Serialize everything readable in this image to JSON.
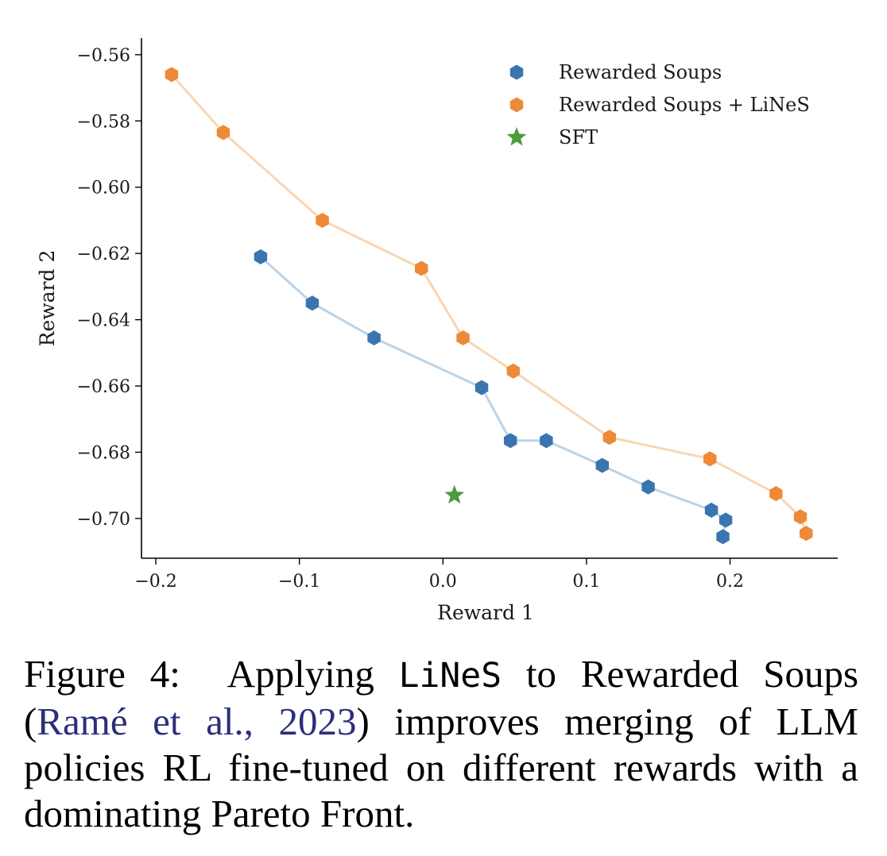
{
  "chart_data": {
    "type": "scatter",
    "xlabel": "Reward 1",
    "ylabel": "Reward 2",
    "xlim": [
      -0.21,
      0.275
    ],
    "ylim": [
      -0.712,
      -0.555
    ],
    "xticks": [
      -0.2,
      -0.1,
      0.0,
      0.1,
      0.2
    ],
    "xtick_labels": [
      "−0.2",
      "−0.1",
      "0.0",
      "0.1",
      "0.2"
    ],
    "yticks": [
      -0.56,
      -0.58,
      -0.6,
      -0.62,
      -0.64,
      -0.66,
      -0.68,
      -0.7
    ],
    "ytick_labels": [
      "−0.56",
      "−0.58",
      "−0.60",
      "−0.62",
      "−0.64",
      "−0.66",
      "−0.68",
      "−0.70"
    ],
    "legend_position": "top-right",
    "series": [
      {
        "name": "Rewarded Soups",
        "marker": "hexagon",
        "color": "#3a75b0",
        "line_color": "#bcd3e6",
        "x": [
          -0.127,
          -0.091,
          -0.048,
          0.027,
          0.047,
          0.072,
          0.111,
          0.143,
          0.187,
          0.197,
          0.195
        ],
        "y": [
          -0.621,
          -0.635,
          -0.6455,
          -0.6605,
          -0.6765,
          -0.6765,
          -0.684,
          -0.6905,
          -0.6975,
          -0.7005,
          -0.7055
        ]
      },
      {
        "name": "Rewarded Soups + LiNeS",
        "marker": "hexagon",
        "color": "#ee8a37",
        "line_color": "#f9d6b4",
        "x": [
          -0.189,
          -0.153,
          -0.084,
          -0.015,
          0.014,
          0.049,
          0.116,
          0.186,
          0.232,
          0.249,
          0.253
        ],
        "y": [
          -0.566,
          -0.5835,
          -0.61,
          -0.6245,
          -0.6455,
          -0.6555,
          -0.6755,
          -0.682,
          -0.6925,
          -0.6995,
          -0.7045
        ]
      },
      {
        "name": "SFT",
        "marker": "star",
        "color": "#4c9b3e",
        "x": [
          0.008
        ],
        "y": [
          -0.693
        ]
      }
    ]
  },
  "caption": {
    "label": "Figure 4:",
    "text_before_method": "Applying",
    "method": "LiNeS",
    "text_after_method": "to Rewarded Soups (",
    "citation": "Ramé et al., 2023",
    "text_after_citation": ") improves merging of LLM policies RL fine-tuned on different rewards with a dominating Pareto Front."
  }
}
